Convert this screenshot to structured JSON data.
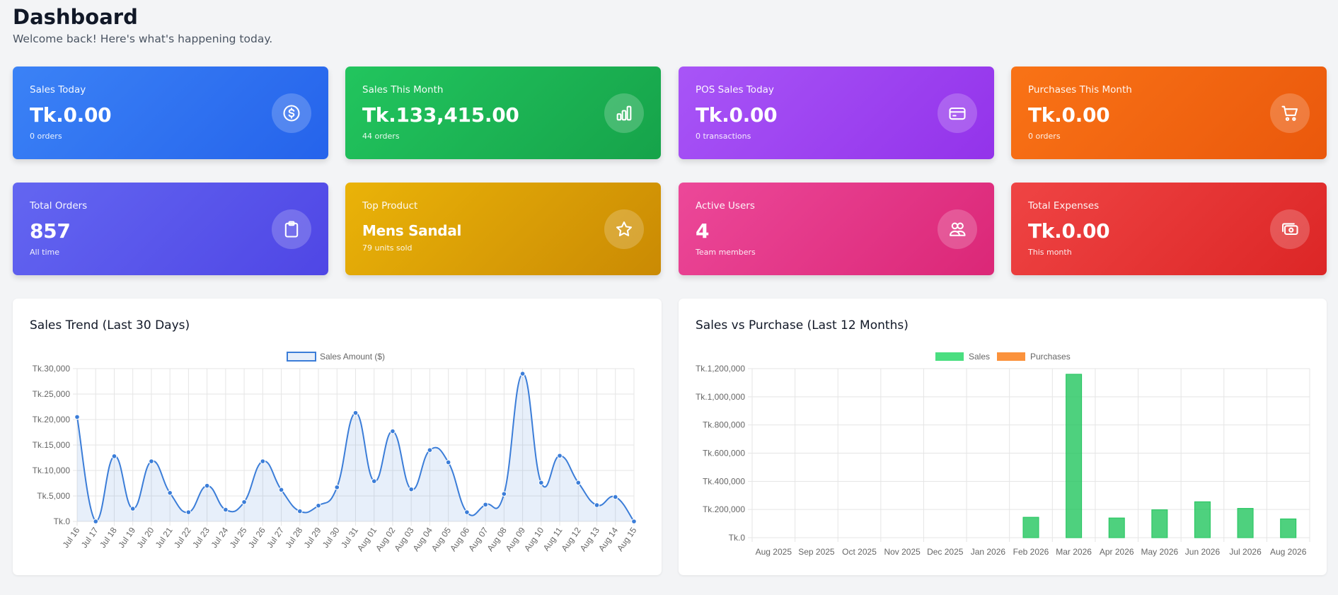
{
  "header": {
    "title": "Dashboard",
    "subtitle": "Welcome back! Here's what's happening today."
  },
  "cards": [
    {
      "label": "Sales Today",
      "value": "Tk.0.00",
      "sub": "0 orders",
      "icon": "dollar-circle-icon",
      "color_from": "#3b82f6",
      "color_to": "#2563eb"
    },
    {
      "label": "Sales This Month",
      "value": "Tk.133,415.00",
      "sub": "44 orders",
      "icon": "bar-chart-icon",
      "color_from": "#22c55e",
      "color_to": "#16a34a"
    },
    {
      "label": "POS Sales Today",
      "value": "Tk.0.00",
      "sub": "0 transactions",
      "icon": "credit-card-icon",
      "color_from": "#a855f7",
      "color_to": "#9333ea"
    },
    {
      "label": "Purchases This Month",
      "value": "Tk.0.00",
      "sub": "0 orders",
      "icon": "shopping-cart-icon",
      "color_from": "#f97316",
      "color_to": "#ea580c"
    },
    {
      "label": "Total Orders",
      "value": "857",
      "sub": "All time",
      "icon": "clipboard-icon",
      "color_from": "#6366f1",
      "color_to": "#4f46e5"
    },
    {
      "label": "Top Product",
      "value": "Mens Sandal",
      "sub": "79 units sold",
      "icon": "star-icon",
      "color_from": "#eab308",
      "color_to": "#ca8a04"
    },
    {
      "label": "Active Users",
      "value": "4",
      "sub": "Team members",
      "icon": "users-icon",
      "color_from": "#ec4899",
      "color_to": "#db2777"
    },
    {
      "label": "Total Expenses",
      "value": "Tk.0.00",
      "sub": "This month",
      "icon": "cash-icon",
      "color_from": "#ef4444",
      "color_to": "#dc2626"
    }
  ],
  "charts": {
    "trend_title": "Sales Trend (Last 30 Days)",
    "bars_title": "Sales vs Purchase (Last 12 Months)"
  },
  "chart_data": [
    {
      "type": "line",
      "title": "Sales Trend (Last 30 Days)",
      "series": [
        {
          "name": "Sales Amount ($)",
          "color": "#3b7dd8",
          "values": [
            20500,
            0,
            12800,
            2500,
            11800,
            5600,
            1800,
            7000,
            2300,
            3800,
            11800,
            6200,
            2000,
            3100,
            6700,
            21300,
            7900,
            17700,
            6300,
            14000,
            11600,
            1800,
            3300,
            5400,
            29000,
            7600,
            12900,
            7600,
            3200,
            4800,
            0
          ]
        }
      ],
      "x": [
        "Jul 16",
        "Jul 17",
        "Jul 18",
        "Jul 19",
        "Jul 20",
        "Jul 21",
        "Jul 22",
        "Jul 23",
        "Jul 24",
        "Jul 25",
        "Jul 26",
        "Jul 27",
        "Jul 28",
        "Jul 29",
        "Jul 30",
        "Jul 31",
        "Aug 01",
        "Aug 02",
        "Aug 03",
        "Aug 04",
        "Aug 05",
        "Aug 06",
        "Aug 07",
        "Aug 08",
        "Aug 09",
        "Aug 10",
        "Aug 11",
        "Aug 12",
        "Aug 13",
        "Aug 14",
        "Aug 15"
      ],
      "yticks": [
        "Tk.0",
        "Tk.5,000",
        "Tk.10,000",
        "Tk.15,000",
        "Tk.20,000",
        "Tk.25,000",
        "Tk.30,000"
      ],
      "ylim": [
        0,
        30000
      ],
      "grid": true,
      "legend": "top-center"
    },
    {
      "type": "bar",
      "title": "Sales vs Purchase (Last 12 Months)",
      "categories": [
        "Aug 2025",
        "Sep 2025",
        "Oct 2025",
        "Nov 2025",
        "Dec 2025",
        "Jan 2026",
        "Feb 2026",
        "Mar 2026",
        "Apr 2026",
        "May 2026",
        "Jun 2026",
        "Jul 2026",
        "Aug 2026"
      ],
      "series": [
        {
          "name": "Sales",
          "color": "#4ade80",
          "values": [
            0,
            0,
            0,
            0,
            0,
            0,
            145000,
            1160000,
            140000,
            198000,
            255000,
            208000,
            133415
          ]
        },
        {
          "name": "Purchases",
          "color": "#fb923c",
          "values": [
            0,
            0,
            0,
            0,
            0,
            0,
            0,
            0,
            0,
            0,
            0,
            0,
            0
          ]
        }
      ],
      "yticks": [
        "Tk.0",
        "Tk.200,000",
        "Tk.400,000",
        "Tk.600,000",
        "Tk.800,000",
        "Tk.1,000,000",
        "Tk.1,200,000"
      ],
      "ylim": [
        0,
        1200000
      ],
      "grid": true,
      "legend": "top-center"
    }
  ]
}
